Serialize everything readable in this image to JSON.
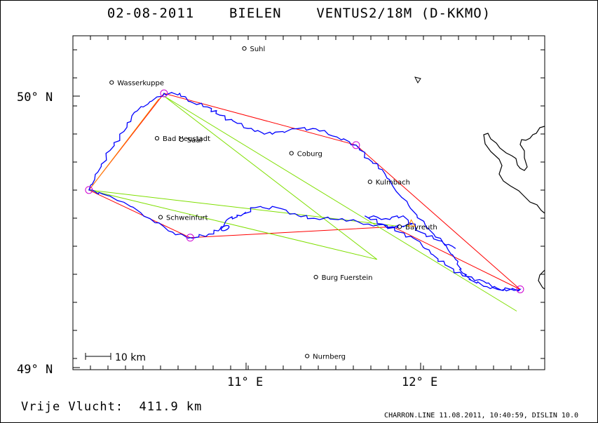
{
  "title": "02-08-2011    BIELEN    VENTUS2/18M (D-KKMO)",
  "distance_text": "Vrije Vlucht:  411.9 km",
  "footer_text": "CHARRON.LINE 11.08.2011, 10:40:59, DISLIN 10.0",
  "axes": {
    "lat_labels": [
      {
        "text": "50° N",
        "value": 50.0
      },
      {
        "text": "49° N",
        "value": 49.0
      }
    ],
    "lon_labels": [
      {
        "text": "11° E",
        "value": 11.0
      },
      {
        "text": "12° E",
        "value": 12.0
      }
    ]
  },
  "scale_bar": {
    "label": "10 km"
  },
  "towns": [
    {
      "name": "Suhl",
      "lon": 10.99,
      "lat": 50.175
    },
    {
      "name": "Wasserkuppe",
      "lon": 10.23,
      "lat": 50.05
    },
    {
      "name": "Bad Neustadt",
      "lon": 10.49,
      "lat": 49.845
    },
    {
      "name": "Saal",
      "lon": 10.63,
      "lat": 49.84
    },
    {
      "name": "Coburg",
      "lon": 11.26,
      "lat": 49.79
    },
    {
      "name": "Kulmbach",
      "lon": 11.71,
      "lat": 49.685
    },
    {
      "name": "Schweinfurt",
      "lon": 10.51,
      "lat": 49.555
    },
    {
      "name": "Bayreuth",
      "lon": 11.88,
      "lat": 49.52
    },
    {
      "name": "Burg Fuerstein",
      "lon": 11.4,
      "lat": 49.335
    },
    {
      "name": "Nurnberg",
      "lon": 11.35,
      "lat": 49.045
    }
  ],
  "turnpoints": [
    {
      "lon": 10.53,
      "lat": 50.01
    },
    {
      "lon": 11.63,
      "lat": 49.82
    },
    {
      "lon": 12.57,
      "lat": 49.29
    },
    {
      "lon": 10.1,
      "lat": 49.655
    },
    {
      "lon": 10.68,
      "lat": 49.48
    }
  ],
  "task_route": [
    [
      10.53,
      50.01
    ],
    [
      11.63,
      49.82
    ],
    [
      12.57,
      49.29
    ],
    [
      11.84,
      49.52
    ],
    [
      10.68,
      49.48
    ],
    [
      10.1,
      49.655
    ],
    [
      10.53,
      50.01
    ]
  ],
  "optimized_route": [
    [
      12.55,
      49.21
    ],
    [
      10.53,
      50.0
    ],
    [
      11.75,
      49.4
    ],
    [
      10.1,
      49.655
    ],
    [
      11.9,
      49.52
    ],
    [
      11.95,
      49.53
    ]
  ],
  "start_leg": [
    [
      10.1,
      49.655
    ],
    [
      10.5,
      49.99
    ]
  ],
  "flight_track": [
    [
      11.95,
      49.53
    ],
    [
      11.88,
      49.52
    ],
    [
      11.84,
      49.52
    ],
    [
      11.7,
      49.53
    ],
    [
      11.55,
      49.55
    ],
    [
      11.4,
      49.55
    ],
    [
      11.3,
      49.56
    ],
    [
      11.18,
      49.59
    ],
    [
      11.05,
      49.59
    ],
    [
      10.97,
      49.56
    ],
    [
      10.9,
      49.55
    ],
    [
      10.85,
      49.51
    ],
    [
      10.78,
      49.49
    ],
    [
      10.68,
      49.48
    ],
    [
      10.58,
      49.5
    ],
    [
      10.45,
      49.55
    ],
    [
      10.3,
      49.61
    ],
    [
      10.18,
      49.64
    ],
    [
      10.1,
      49.655
    ],
    [
      10.15,
      49.72
    ],
    [
      10.22,
      49.8
    ],
    [
      10.3,
      49.87
    ],
    [
      10.36,
      49.94
    ],
    [
      10.45,
      49.98
    ],
    [
      10.53,
      50.01
    ],
    [
      10.62,
      50.01
    ],
    [
      10.68,
      49.98
    ],
    [
      10.78,
      49.96
    ],
    [
      10.85,
      49.93
    ],
    [
      10.95,
      49.9
    ],
    [
      11.05,
      49.87
    ],
    [
      11.15,
      49.86
    ],
    [
      11.28,
      49.88
    ],
    [
      11.4,
      49.88
    ],
    [
      11.52,
      49.85
    ],
    [
      11.63,
      49.82
    ],
    [
      11.7,
      49.77
    ],
    [
      11.78,
      49.73
    ],
    [
      11.85,
      49.66
    ],
    [
      11.93,
      49.6
    ],
    [
      12.03,
      49.52
    ],
    [
      12.13,
      49.46
    ],
    [
      12.2,
      49.4
    ],
    [
      12.24,
      49.35
    ],
    [
      12.3,
      49.32
    ],
    [
      12.38,
      49.3
    ],
    [
      12.48,
      49.29
    ],
    [
      12.57,
      49.29
    ],
    [
      12.44,
      49.29
    ],
    [
      12.36,
      49.32
    ],
    [
      12.24,
      49.34
    ],
    [
      12.14,
      49.38
    ],
    [
      12.06,
      49.42
    ],
    [
      11.98,
      49.47
    ],
    [
      11.88,
      49.5
    ],
    [
      11.78,
      49.53
    ],
    [
      11.68,
      49.56
    ],
    [
      11.8,
      49.55
    ],
    [
      11.9,
      49.56
    ],
    [
      12.0,
      49.5
    ],
    [
      12.1,
      49.47
    ],
    [
      12.2,
      49.44
    ]
  ],
  "colors": {
    "track": "#0000ff",
    "task": "#ff0000",
    "optimized": "#7fdf00",
    "start_leg": "#ff8c00",
    "turnpoint": "#d000d0",
    "border": "#000000"
  }
}
